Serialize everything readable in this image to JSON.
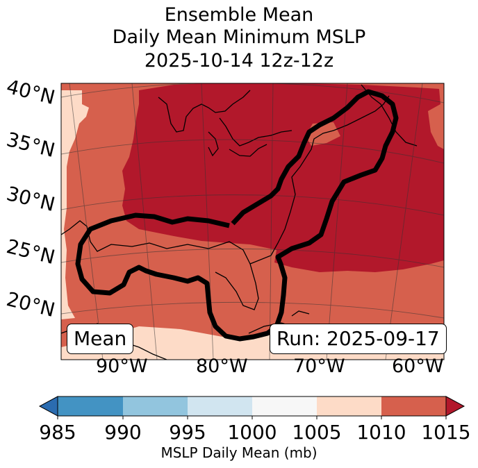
{
  "title": {
    "line1": "Ensemble Mean",
    "line2": "Daily Mean Minimum MSLP",
    "line3": "2025-10-14 12z-12z"
  },
  "latitude_labels": [
    "40°N",
    "35°N",
    "30°N",
    "25°N",
    "20°N"
  ],
  "longitude_labels": [
    "90°W",
    "80°W",
    "70°W",
    "60°W"
  ],
  "badges": {
    "mean": "Mean",
    "run": "Run: 2025-09-17"
  },
  "colorbar": {
    "ticks": [
      "985",
      "990",
      "995",
      "1000",
      "1005",
      "1010",
      "1015"
    ],
    "label": "MSLP Daily Mean (mb)",
    "colors": {
      "below_985": "#2b6cb0",
      "985_990": "#4393c3",
      "990_995": "#92c5de",
      "995_1000": "#d1e5f0",
      "1000_1005": "#f7f7f7",
      "1005_1010": "#fddbc7",
      "1010_1015": "#d6604d",
      "above_1015": "#b2182b"
    }
  }
}
